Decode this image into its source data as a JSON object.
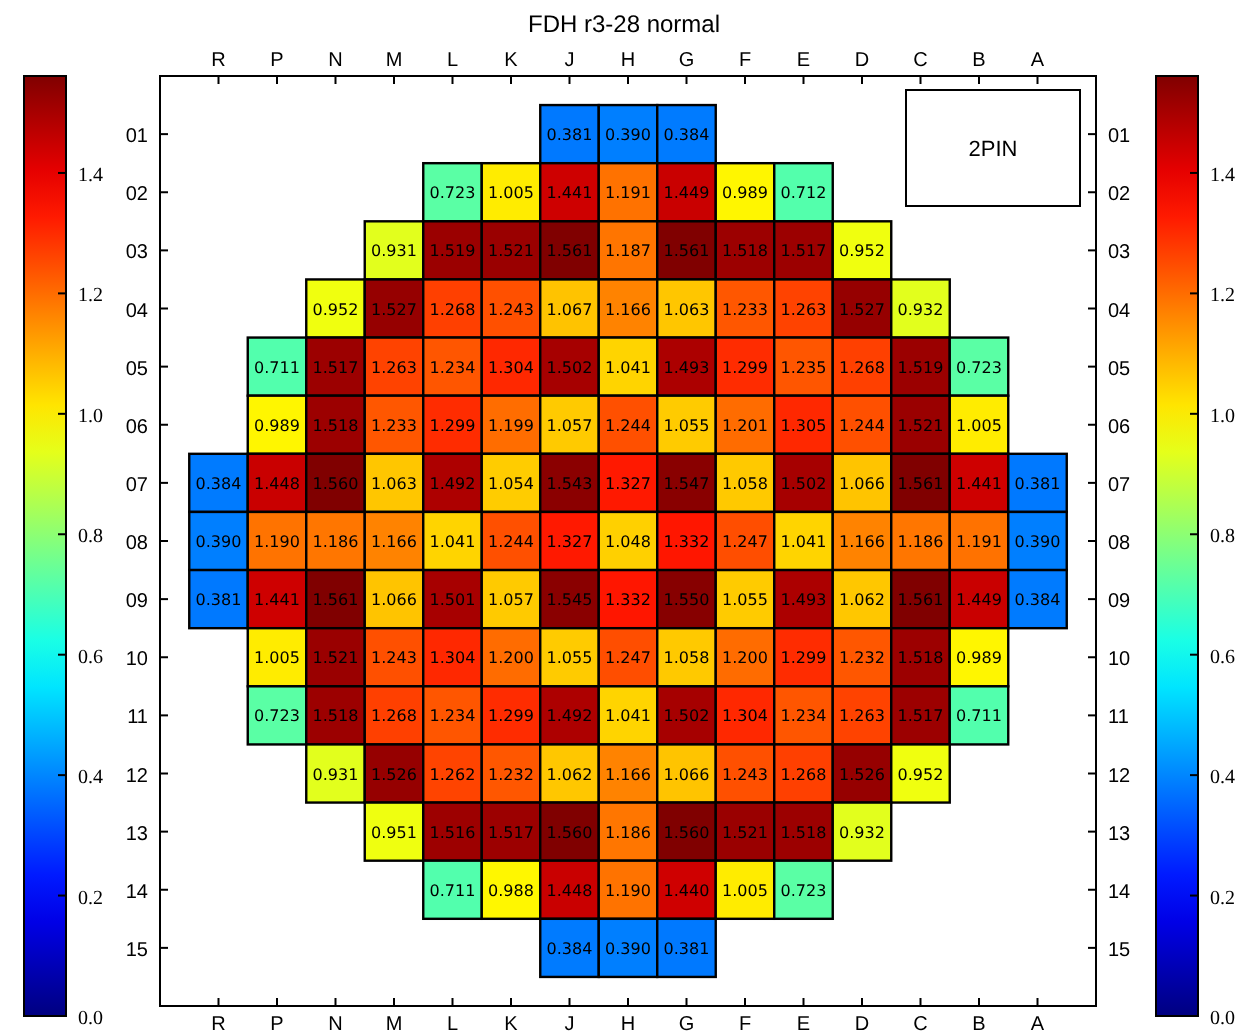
{
  "chart_data": {
    "type": "heatmap",
    "title": "FDH r3-28 normal",
    "categories": [
      "R",
      "P",
      "N",
      "M",
      "L",
      "K",
      "J",
      "H",
      "G",
      "F",
      "E",
      "D",
      "C",
      "B",
      "A"
    ],
    "y_categories": [
      "01",
      "02",
      "03",
      "04",
      "05",
      "06",
      "07",
      "08",
      "09",
      "10",
      "11",
      "12",
      "13",
      "14",
      "15"
    ],
    "y2_categories": [
      "01",
      "02",
      "03",
      "04",
      "05",
      "06",
      "07",
      "08",
      "09",
      "10",
      "11",
      "12",
      "13",
      "14",
      "15"
    ],
    "cells": [
      [
        null,
        null,
        null,
        null,
        null,
        null,
        0.381,
        0.39,
        0.384,
        null,
        null,
        null,
        null,
        null,
        null
      ],
      [
        null,
        null,
        null,
        null,
        0.723,
        1.005,
        1.441,
        1.191,
        1.449,
        0.989,
        0.712,
        null,
        null,
        null,
        null
      ],
      [
        null,
        null,
        null,
        0.931,
        1.519,
        1.521,
        1.561,
        1.187,
        1.561,
        1.518,
        1.517,
        0.952,
        null,
        null,
        null
      ],
      [
        null,
        null,
        0.952,
        1.527,
        1.268,
        1.243,
        1.067,
        1.166,
        1.063,
        1.233,
        1.263,
        1.527,
        0.932,
        null,
        null
      ],
      [
        null,
        0.711,
        1.517,
        1.263,
        1.234,
        1.304,
        1.502,
        1.041,
        1.493,
        1.299,
        1.235,
        1.268,
        1.519,
        0.723,
        null
      ],
      [
        null,
        0.989,
        1.518,
        1.233,
        1.299,
        1.199,
        1.057,
        1.244,
        1.055,
        1.201,
        1.305,
        1.244,
        1.521,
        1.005,
        null
      ],
      [
        0.384,
        1.448,
        1.56,
        1.063,
        1.492,
        1.054,
        1.543,
        1.327,
        1.547,
        1.058,
        1.502,
        1.066,
        1.561,
        1.441,
        0.381
      ],
      [
        0.39,
        1.19,
        1.186,
        1.166,
        1.041,
        1.244,
        1.327,
        1.048,
        1.332,
        1.247,
        1.041,
        1.166,
        1.186,
        1.191,
        0.39
      ],
      [
        0.381,
        1.441,
        1.561,
        1.066,
        1.501,
        1.057,
        1.545,
        1.332,
        1.55,
        1.055,
        1.493,
        1.062,
        1.561,
        1.449,
        0.384
      ],
      [
        null,
        1.005,
        1.521,
        1.243,
        1.304,
        1.2,
        1.055,
        1.247,
        1.058,
        1.2,
        1.299,
        1.232,
        1.518,
        0.989,
        null
      ],
      [
        null,
        0.723,
        1.518,
        1.268,
        1.234,
        1.299,
        1.492,
        1.041,
        1.502,
        1.304,
        1.234,
        1.263,
        1.517,
        0.711,
        null
      ],
      [
        null,
        null,
        0.931,
        1.526,
        1.262,
        1.232,
        1.062,
        1.166,
        1.066,
        1.243,
        1.268,
        1.526,
        0.952,
        null,
        null
      ],
      [
        null,
        null,
        null,
        0.951,
        1.516,
        1.517,
        1.56,
        1.186,
        1.56,
        1.521,
        1.518,
        0.932,
        null,
        null,
        null
      ],
      [
        null,
        null,
        null,
        null,
        0.711,
        0.988,
        1.448,
        1.19,
        1.44,
        1.005,
        0.723,
        null,
        null,
        null,
        null
      ],
      [
        null,
        null,
        null,
        null,
        null,
        null,
        0.384,
        0.39,
        0.381,
        null,
        null,
        null,
        null,
        null,
        null
      ]
    ],
    "cell_labels": [
      [
        null,
        null,
        null,
        null,
        null,
        null,
        "0.381",
        "0.390",
        "0.384",
        null,
        null,
        null,
        null,
        null,
        null
      ],
      [
        null,
        null,
        null,
        null,
        "0.723",
        "1.005",
        "1.441",
        "1.191",
        "1.449",
        "0.989",
        "0.712",
        null,
        null,
        null,
        null
      ],
      [
        null,
        null,
        null,
        "0.931",
        "1.519",
        "1.521",
        "1.561",
        "1.187",
        "1.561",
        "1.518",
        "1.517",
        "0.952",
        null,
        null,
        null
      ],
      [
        null,
        null,
        "0.952",
        "1.527",
        "1.268",
        "1.243",
        "1.067",
        "1.166",
        "1.063",
        "1.233",
        "1.263",
        "1.527",
        "0.932",
        null,
        null
      ],
      [
        null,
        "0.711",
        "1.517",
        "1.263",
        "1.234",
        "1.304",
        "1.502",
        "1.041",
        "1.493",
        "1.299",
        "1.235",
        "1.268",
        "1.519",
        "0.723",
        null
      ],
      [
        null,
        "0.989",
        "1.518",
        "1.233",
        "1.299",
        "1.199",
        "1.057",
        "1.244",
        "1.055",
        "1.201",
        "1.305",
        "1.244",
        "1.521",
        "1.005",
        null
      ],
      [
        "0.384",
        "1.448",
        "1.560",
        "1.063",
        "1.492",
        "1.054",
        "1.543",
        "1.327",
        "1.547",
        "1.058",
        "1.502",
        "1.066",
        "1.561",
        "1.441",
        "0.381"
      ],
      [
        "0.390",
        "1.190",
        "1.186",
        "1.166",
        "1.041",
        "1.244",
        "1.327",
        "1.048",
        "1.332",
        "1.247",
        "1.041",
        "1.166",
        "1.186",
        "1.191",
        "0.390"
      ],
      [
        "0.381",
        "1.441",
        "1.561",
        "1.066",
        "1.501",
        "1.057",
        "1.545",
        "1.332",
        "1.550",
        "1.055",
        "1.493",
        "1.062",
        "1.561",
        "1.449",
        "0.384"
      ],
      [
        null,
        "1.005",
        "1.521",
        "1.243",
        "1.304",
        "1.200",
        "1.055",
        "1.247",
        "1.058",
        "1.200",
        "1.299",
        "1.232",
        "1.518",
        "0.989",
        null
      ],
      [
        null,
        "0.723",
        "1.518",
        "1.268",
        "1.234",
        "1.299",
        "1.492",
        "1.041",
        "1.502",
        "1.304",
        "1.234",
        "1.263",
        "1.517",
        "0.711",
        null
      ],
      [
        null,
        null,
        "0.931",
        "1.526",
        "1.262",
        "1.232",
        "1.062",
        "1.166",
        "1.066",
        "1.243",
        "1.268",
        "1.526",
        "0.952",
        null,
        null
      ],
      [
        null,
        null,
        null,
        "0.951",
        "1.516",
        "1.517",
        "1.560",
        "1.186",
        "1.560",
        "1.521",
        "1.518",
        "0.932",
        null,
        null,
        null
      ],
      [
        null,
        null,
        null,
        null,
        "0.711",
        "0.988",
        "1.448",
        "1.190",
        "1.440",
        "1.005",
        "0.723",
        null,
        null,
        null,
        null
      ],
      [
        null,
        null,
        null,
        null,
        null,
        null,
        "0.384",
        "0.390",
        "0.381",
        null,
        null,
        null,
        null,
        null,
        null
      ]
    ],
    "data_labels": true,
    "clim": [
      0,
      1.561
    ],
    "cticks": [
      {
        "value": 0,
        "label": "0.0"
      },
      {
        "value": 0.2,
        "label": "0.2"
      },
      {
        "value": 0.4,
        "label": "0.4"
      },
      {
        "value": 0.6,
        "label": "0.6"
      },
      {
        "value": 0.8,
        "label": "0.8"
      },
      {
        "value": 1,
        "label": "1.0"
      },
      {
        "value": 1.2,
        "label": "1.2"
      },
      {
        "value": 1.4,
        "label": "1.4"
      }
    ],
    "annotations": [
      "2PIN"
    ]
  }
}
